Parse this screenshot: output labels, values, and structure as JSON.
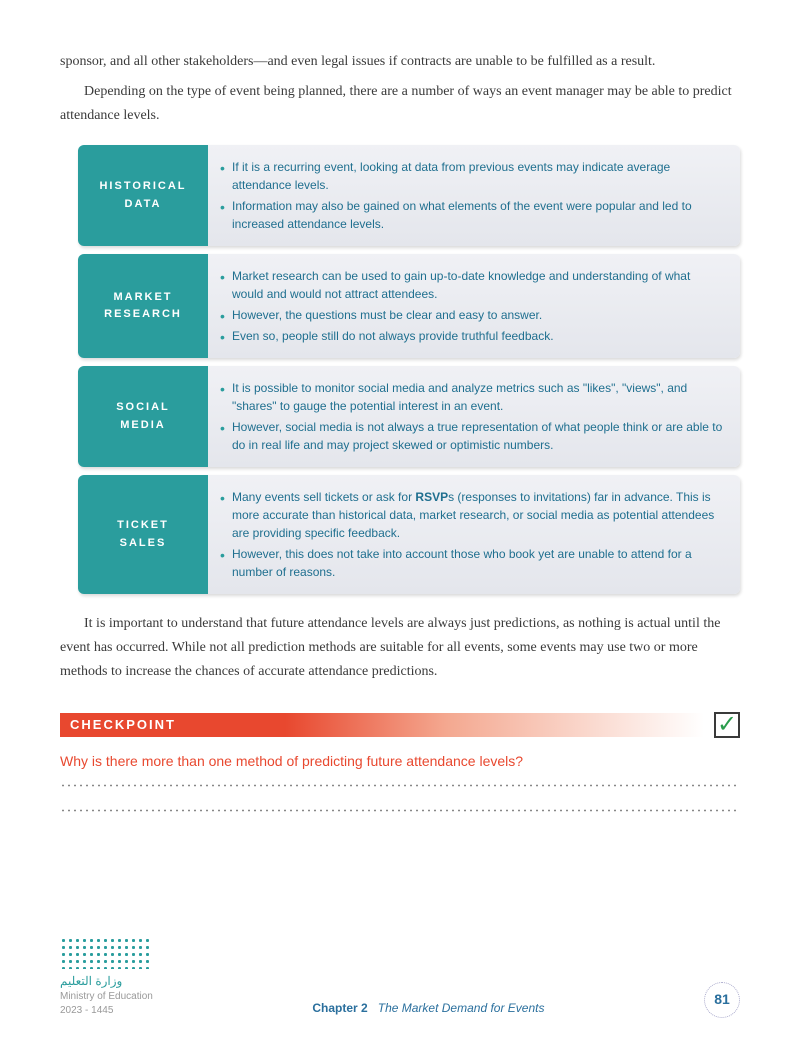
{
  "intro": {
    "p1": "sponsor, and all other stakeholders—and even legal issues if contracts are unable to be fulfilled as a result.",
    "p2": "Depending on the type of event being planned, there are a number of ways an event manager may be able to predict attendance levels."
  },
  "methods": [
    {
      "label1": "HISTORICAL",
      "label2": "DATA",
      "bullets": [
        "If it is a recurring event, looking at data from previous events may indicate average attendance levels.",
        "Information may also be gained on what elements of the event were popular and led to increased attendance levels."
      ]
    },
    {
      "label1": "MARKET",
      "label2": "RESEARCH",
      "bullets": [
        "Market research can be used to gain up-to-date knowledge and understanding of what would and would not attract attendees.",
        "However, the questions must be clear and easy to answer.",
        "Even so, people still do not always provide truthful feedback."
      ]
    },
    {
      "label1": "SOCIAL",
      "label2": "MEDIA",
      "bullets": [
        "It is possible to monitor social media and analyze metrics such as \"likes\", \"views\", and \"shares\" to gauge the potential interest in an event.",
        "However, social media is not always a true representation of what people think or are able to do in real life and may project skewed or optimistic numbers."
      ]
    },
    {
      "label1": "TICKET",
      "label2": "SALES",
      "bullets": [
        "Many events sell tickets or ask for <b>RSVP</b>s (responses to invitations) far in advance. This is more accurate than historical data, market research, or social media as potential attendees are providing specific feedback.",
        "However, this does not take into account those who book yet are unable to attend for a number of reasons."
      ]
    }
  ],
  "after": {
    "p1": "It is important to understand that future attendance levels are always just predictions, as nothing is actual until the event has occurred. While not all prediction methods are suitable for all events, some events may use two or more methods to increase the chances of accurate attendance predictions."
  },
  "checkpoint": {
    "label": "CHECKPOINT",
    "question": "Why is there more than one method of predicting future attendance levels?"
  },
  "footer": {
    "ministry_ar": "وزارة التعليم",
    "ministry_en": "Ministry of Education",
    "year": "2023 - 1445",
    "chapter": "Chapter 2",
    "title": "The Market Demand for Events",
    "page": "81"
  },
  "colors": {
    "teal": "#2a9d9d",
    "orange": "#e8482f",
    "text_blue": "#1f6f8f",
    "body_text": "#3a3a3a"
  }
}
